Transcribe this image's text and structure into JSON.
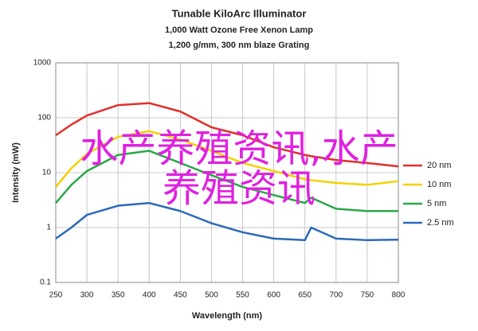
{
  "chart_data": {
    "type": "line",
    "title": "Tunable KiloArc Illuminator",
    "subtitle": [
      "1,000 Watt Ozone Free Xenon Lamp",
      "1,200 g/mm, 300 nm blaze Grating"
    ],
    "x_label": "Wavelength (nm)",
    "y_label": "Intensity (mW)",
    "x": [
      250,
      275,
      300,
      350,
      400,
      450,
      500,
      550,
      600,
      650,
      660,
      700,
      750,
      800
    ],
    "series": [
      {
        "name": "20 nm",
        "color": "#e0302a",
        "values": [
          48,
          75,
          110,
          170,
          185,
          130,
          67,
          48,
          29,
          21,
          20,
          17,
          15,
          13
        ]
      },
      {
        "name": "10 nm",
        "color": "#f5d000",
        "values": [
          5.5,
          12,
          22,
          45,
          57,
          40,
          25,
          15,
          10.7,
          7.6,
          7.3,
          6.5,
          6,
          7
        ]
      },
      {
        "name": "5 nm",
        "color": "#2aa84a",
        "values": [
          2.8,
          6,
          10.7,
          21,
          25,
          15,
          9,
          5.5,
          3.9,
          2.8,
          3.5,
          2.2,
          2,
          2
        ]
      },
      {
        "name": "2.5 nm",
        "color": "#2a6ab8",
        "values": [
          0.63,
          1,
          1.7,
          2.5,
          2.8,
          2,
          1.2,
          0.82,
          0.63,
          0.59,
          1,
          0.63,
          0.59,
          0.6
        ]
      }
    ],
    "xlim": [
      250,
      800
    ],
    "xticks": [
      250,
      300,
      350,
      400,
      450,
      500,
      550,
      600,
      650,
      700,
      750,
      800
    ],
    "ylim": [
      0.1,
      1000
    ],
    "yticks": [
      0.1,
      1,
      10,
      100,
      1000
    ],
    "log_y": true,
    "grid": true,
    "legend": "right",
    "overlay_text": [
      "水产养殖资讯,水产",
      "养殖资讯"
    ],
    "overlay_color": "#e020e0"
  }
}
